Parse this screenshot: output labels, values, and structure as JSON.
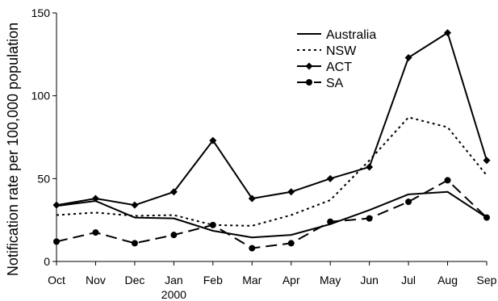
{
  "chart_data": {
    "type": "line",
    "title": "",
    "xlabel": "",
    "ylabel": "Notification rate per 100,000 population",
    "ylim": [
      0,
      150
    ],
    "yticks": [
      0,
      50,
      100,
      150
    ],
    "categories": [
      "Oct",
      "Nov",
      "Dec",
      "Jan",
      "Feb",
      "Mar",
      "Apr",
      "May",
      "Jun",
      "Jul",
      "Aug",
      "Sep"
    ],
    "x_sublabels": [
      {
        "index": 3,
        "text": "2000"
      }
    ],
    "grid": false,
    "legend_position": "top-right",
    "series": [
      {
        "name": "Australia",
        "line_style": "solid",
        "marker": "none",
        "color": "#000000",
        "values": [
          33.5,
          36.5,
          26.5,
          26,
          18.5,
          14.5,
          16,
          22.5,
          31,
          40.5,
          42,
          26.5
        ]
      },
      {
        "name": "NSW",
        "line_style": "dotted",
        "marker": "none",
        "color": "#000000",
        "values": [
          28,
          29.5,
          27.5,
          28,
          22,
          21.5,
          28,
          37,
          61,
          87,
          81,
          52
        ]
      },
      {
        "name": "ACT",
        "line_style": "solid",
        "marker": "diamond",
        "color": "#000000",
        "values": [
          34,
          38,
          34,
          42,
          73,
          38,
          42,
          50,
          57,
          123,
          138,
          61
        ]
      },
      {
        "name": "SA",
        "line_style": "dashed",
        "marker": "circle",
        "color": "#000000",
        "values": [
          12,
          17.5,
          11,
          16,
          22,
          8,
          11,
          24,
          26,
          36,
          49,
          26.5
        ]
      }
    ]
  }
}
